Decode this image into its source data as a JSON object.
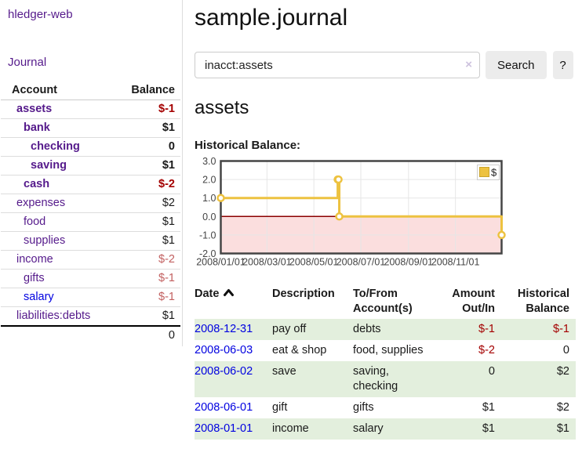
{
  "app": {
    "brand": "hledger-web",
    "nav_journal": "Journal"
  },
  "colors": {
    "link-purple": "#551a8b",
    "link-blue": "#0000e0",
    "negative": "#a40000",
    "negative-faded": "#c26060",
    "stripe-green": "#e3efdd"
  },
  "sidebar": {
    "headers": {
      "account": "Account",
      "balance": "Balance"
    },
    "accounts": [
      {
        "name": "assets",
        "indent": 1,
        "bold": true,
        "balance": "$-1",
        "balance_class": "neg",
        "link_class": "purple"
      },
      {
        "name": "bank",
        "indent": 2,
        "bold": true,
        "balance": "$1",
        "balance_class": "",
        "link_class": "purple"
      },
      {
        "name": "checking",
        "indent": 3,
        "bold": true,
        "balance": "0",
        "balance_class": "",
        "link_class": "purple"
      },
      {
        "name": "saving",
        "indent": 3,
        "bold": true,
        "balance": "$1",
        "balance_class": "",
        "link_class": "purple"
      },
      {
        "name": "cash",
        "indent": 2,
        "bold": true,
        "balance": "$-2",
        "balance_class": "neg",
        "link_class": "purple"
      },
      {
        "name": "expenses",
        "indent": 1,
        "bold": false,
        "balance": "$2",
        "balance_class": "",
        "link_class": "purple"
      },
      {
        "name": "food",
        "indent": 2,
        "bold": false,
        "balance": "$1",
        "balance_class": "",
        "link_class": "purple"
      },
      {
        "name": "supplies",
        "indent": 2,
        "bold": false,
        "balance": "$1",
        "balance_class": "",
        "link_class": "purple"
      },
      {
        "name": "income",
        "indent": 1,
        "bold": false,
        "balance": "$-2",
        "balance_class": "neg-faded",
        "link_class": "purple"
      },
      {
        "name": "gifts",
        "indent": 2,
        "bold": false,
        "balance": "$-1",
        "balance_class": "neg-faded",
        "link_class": "purple"
      },
      {
        "name": "salary",
        "indent": 2,
        "bold": false,
        "balance": "$-1",
        "balance_class": "neg-faded",
        "link_class": "blue"
      },
      {
        "name": "liabilities:debts",
        "indent": 1,
        "bold": false,
        "balance": "$1",
        "balance_class": "",
        "link_class": "purple"
      }
    ],
    "total": "0"
  },
  "header": {
    "title": "sample.journal"
  },
  "search": {
    "value": "inacct:assets",
    "clear_icon": "×",
    "button_label": "Search",
    "help_label": "?"
  },
  "account_page": {
    "title": "assets",
    "chart_label": "Historical Balance:"
  },
  "chart_data": {
    "type": "line",
    "step": true,
    "title": "Historical Balance",
    "series": [
      {
        "name": "$",
        "color": "#edc240",
        "points": [
          [
            "2008-01-01",
            1
          ],
          [
            "2008-06-01",
            2
          ],
          [
            "2008-06-02",
            2
          ],
          [
            "2008-06-03",
            0
          ],
          [
            "2008-12-31",
            -1
          ]
        ]
      }
    ],
    "xrange": [
      "2008-01-01",
      "2008-12-31"
    ],
    "ylim": [
      -2,
      3
    ],
    "yticks": [
      3.0,
      2.0,
      1.0,
      0.0,
      -1.0,
      -2.0
    ],
    "xtick_labels": [
      "2008/01/01",
      "2008/03/01",
      "2008/05/01",
      "2008/07/01",
      "2008/09/01",
      "2008/11/01"
    ],
    "grid": true,
    "gridline_color": "#e6e6e6",
    "border_color": "#454545",
    "tick_label_color": "#444444",
    "negative_region_fill": "#fbdede",
    "zero_line_color": "#8b0000",
    "marker": "open-circle",
    "legend": {
      "position": "top-right",
      "label": "$",
      "swatch_color": "#edc240",
      "swatch_border": "#c9a42e"
    }
  },
  "register": {
    "headers": [
      "Date",
      "Description",
      "To/From Account(s)",
      "Amount Out/In",
      "Historical Balance"
    ],
    "sort": {
      "column": "Date",
      "direction": "ascending"
    },
    "rows": [
      {
        "date": "2008-12-31",
        "description": "pay off",
        "accounts": "debts",
        "amount": "$-1",
        "amount_negative": true,
        "balance": "$-1",
        "balance_negative": true
      },
      {
        "date": "2008-06-03",
        "description": "eat & shop",
        "accounts": "food, supplies",
        "amount": "$-2",
        "amount_negative": true,
        "balance": "0",
        "balance_negative": false
      },
      {
        "date": "2008-06-02",
        "description": "save",
        "accounts": "saving, checking",
        "amount": "0",
        "amount_negative": false,
        "balance": "$2",
        "balance_negative": false
      },
      {
        "date": "2008-06-01",
        "description": "gift",
        "accounts": "gifts",
        "amount": "$1",
        "amount_negative": false,
        "balance": "$2",
        "balance_negative": false
      },
      {
        "date": "2008-01-01",
        "description": "income",
        "accounts": "salary",
        "amount": "$1",
        "amount_negative": false,
        "balance": "$1",
        "balance_negative": false
      }
    ]
  }
}
